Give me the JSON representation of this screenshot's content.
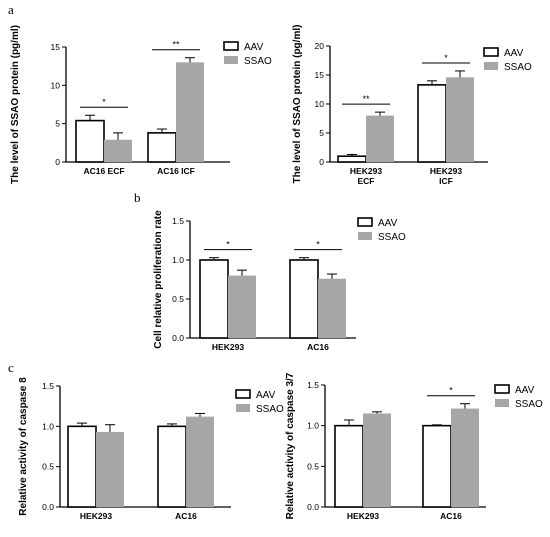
{
  "panel_letters": [
    "a",
    "b",
    "c"
  ],
  "colors": {
    "aav": "#ffffff",
    "ssao": "#a6a6a6",
    "stroke": "#000000"
  },
  "chart_data": [
    {
      "type": "bar",
      "panel": "a",
      "ylabel": "The level of SSAO protein (pg/ml)",
      "categories": [
        "AC16 ECF",
        "AC16 ICF"
      ],
      "ylim": [
        0,
        15
      ],
      "yticks": [
        0,
        5,
        10,
        15
      ],
      "series": [
        {
          "name": "AAV",
          "values": [
            5.4,
            3.8
          ],
          "errors": [
            0.7,
            0.5
          ]
        },
        {
          "name": "SSAO",
          "values": [
            2.9,
            13.0
          ],
          "errors": [
            0.9,
            0.6
          ]
        }
      ],
      "significance": [
        {
          "category": 0,
          "label": "*"
        },
        {
          "category": 1,
          "label": "**"
        }
      ]
    },
    {
      "type": "bar",
      "panel": "a",
      "ylabel": "The level of SSAO protein (pg/ml)",
      "categories": [
        [
          "HEK293",
          "ECF"
        ],
        [
          "HEK293",
          "ICF"
        ]
      ],
      "ylim": [
        0,
        20
      ],
      "yticks": [
        0,
        5,
        10,
        15,
        20
      ],
      "series": [
        {
          "name": "AAV",
          "values": [
            1.0,
            13.3
          ],
          "errors": [
            0.3,
            0.7
          ]
        },
        {
          "name": "SSAO",
          "values": [
            8.0,
            14.6
          ],
          "errors": [
            0.6,
            1.1
          ]
        }
      ],
      "significance": [
        {
          "category": 0,
          "label": "**"
        },
        {
          "category": 1,
          "label": "*"
        }
      ]
    },
    {
      "type": "bar",
      "panel": "b",
      "ylabel": "Cell relative proliferation rate",
      "categories": [
        "HEK293",
        "AC16"
      ],
      "ylim": [
        0,
        1.5
      ],
      "yticks": [
        "0.0",
        "0.5",
        "1.0",
        "1.5"
      ],
      "series": [
        {
          "name": "AAV",
          "values": [
            1.0,
            1.0
          ],
          "errors": [
            0.03,
            0.03
          ]
        },
        {
          "name": "SSAO",
          "values": [
            0.8,
            0.76
          ],
          "errors": [
            0.07,
            0.06
          ]
        }
      ],
      "significance": [
        {
          "category": 0,
          "label": "*"
        },
        {
          "category": 1,
          "label": "*"
        }
      ]
    },
    {
      "type": "bar",
      "panel": "c",
      "ylabel": "Relative activity of caspase 8",
      "categories": [
        "HEK293",
        "AC16"
      ],
      "ylim": [
        0,
        1.5
      ],
      "yticks": [
        "0.0",
        "0.5",
        "1.0",
        "1.5"
      ],
      "series": [
        {
          "name": "AAV",
          "values": [
            1.0,
            1.0
          ],
          "errors": [
            0.04,
            0.03
          ]
        },
        {
          "name": "SSAO",
          "values": [
            0.93,
            1.12
          ],
          "errors": [
            0.09,
            0.04
          ]
        }
      ],
      "significance": []
    },
    {
      "type": "bar",
      "panel": "c",
      "ylabel": "Relative activity of caspase 3/7",
      "categories": [
        "HEK293",
        "AC16"
      ],
      "ylim": [
        0,
        1.5
      ],
      "yticks": [
        "0.0",
        "0.5",
        "1.0",
        "1.5"
      ],
      "series": [
        {
          "name": "AAV",
          "values": [
            1.0,
            1.0
          ],
          "errors": [
            0.07,
            0.01
          ]
        },
        {
          "name": "SSAO",
          "values": [
            1.15,
            1.21
          ],
          "errors": [
            0.02,
            0.06
          ]
        }
      ],
      "significance": [
        {
          "category": 1,
          "label": "*"
        }
      ]
    }
  ]
}
